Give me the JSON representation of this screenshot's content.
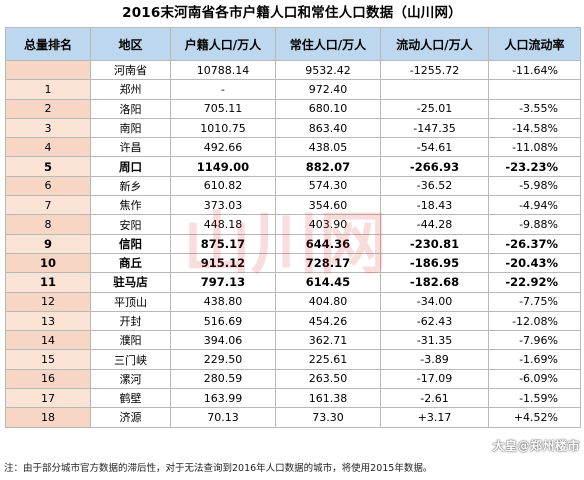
{
  "title": "2016末河南省各市户籍人口和常住人口数据（山川网）",
  "headers": [
    "总量排名",
    "地区",
    "户籍人口/万人",
    "常住人口/万人",
    "流动人口/万人",
    "人口流动率"
  ],
  "rows": [
    {
      "rank": "",
      "city": "河南省",
      "huji": "10788.14",
      "changzhu": "9532.42",
      "liudong": "-1255.72",
      "rate": "-11.64%",
      "bold": false
    },
    {
      "rank": "1",
      "city": "郑州",
      "huji": "-",
      "changzhu": "972.40",
      "liudong": "",
      "rate": "",
      "bold": false
    },
    {
      "rank": "2",
      "city": "洛阳",
      "huji": "705.11",
      "changzhu": "680.10",
      "liudong": "-25.01",
      "rate": "-3.55%",
      "bold": false
    },
    {
      "rank": "3",
      "city": "南阳",
      "huji": "1010.75",
      "changzhu": "863.40",
      "liudong": "-147.35",
      "rate": "-14.58%",
      "bold": false
    },
    {
      "rank": "4",
      "city": "许昌",
      "huji": "492.66",
      "changzhu": "438.05",
      "liudong": "-54.61",
      "rate": "-11.08%",
      "bold": false
    },
    {
      "rank": "5",
      "city": "周口",
      "huji": "1149.00",
      "changzhu": "882.07",
      "liudong": "-266.93",
      "rate": "-23.23%",
      "bold": true
    },
    {
      "rank": "6",
      "city": "新乡",
      "huji": "610.82",
      "changzhu": "574.30",
      "liudong": "-36.52",
      "rate": "-5.98%",
      "bold": false
    },
    {
      "rank": "7",
      "city": "焦作",
      "huji": "373.03",
      "changzhu": "354.60",
      "liudong": "-18.43",
      "rate": "-4.94%",
      "bold": false
    },
    {
      "rank": "8",
      "city": "安阳",
      "huji": "448.18",
      "changzhu": "403.90",
      "liudong": "-44.28",
      "rate": "-9.88%",
      "bold": false
    },
    {
      "rank": "9",
      "city": "信阳",
      "huji": "875.17",
      "changzhu": "644.36",
      "liudong": "-230.81",
      "rate": "-26.37%",
      "bold": true
    },
    {
      "rank": "10",
      "city": "商丘",
      "huji": "915.12",
      "changzhu": "728.17",
      "liudong": "-186.95",
      "rate": "-20.43%",
      "bold": true
    },
    {
      "rank": "11",
      "city": "驻马店",
      "huji": "797.13",
      "changzhu": "614.45",
      "liudong": "-182.68",
      "rate": "-22.92%",
      "bold": true
    },
    {
      "rank": "12",
      "city": "平顶山",
      "huji": "438.80",
      "changzhu": "404.80",
      "liudong": "-34.00",
      "rate": "-7.75%",
      "bold": false
    },
    {
      "rank": "13",
      "city": "开封",
      "huji": "516.69",
      "changzhu": "454.26",
      "liudong": "-62.43",
      "rate": "-12.08%",
      "bold": false
    },
    {
      "rank": "14",
      "city": "濮阳",
      "huji": "394.06",
      "changzhu": "362.71",
      "liudong": "-31.35",
      "rate": "-7.96%",
      "bold": false
    },
    {
      "rank": "15",
      "city": "三门峡",
      "huji": "229.50",
      "changzhu": "225.61",
      "liudong": "-3.89",
      "rate": "-1.69%",
      "bold": false
    },
    {
      "rank": "16",
      "city": "漯河",
      "huji": "280.59",
      "changzhu": "263.50",
      "liudong": "-17.09",
      "rate": "-6.09%",
      "bold": false
    },
    {
      "rank": "17",
      "city": "鹤壁",
      "huji": "163.99",
      "changzhu": "161.38",
      "liudong": "-2.61",
      "rate": "-1.59%",
      "bold": false
    },
    {
      "rank": "18",
      "city": "济源",
      "huji": "70.13",
      "changzhu": "73.30",
      "liudong": "+3.17",
      "rate": "+4.52%",
      "bold": false
    }
  ],
  "note": "注：由于部分城市官方数据的滞后性，对于无法查询到2016年人口数据的城市，将使用2015年数据。",
  "logo": "大皇@郑州楼市",
  "watermark_text": "山川网"
}
